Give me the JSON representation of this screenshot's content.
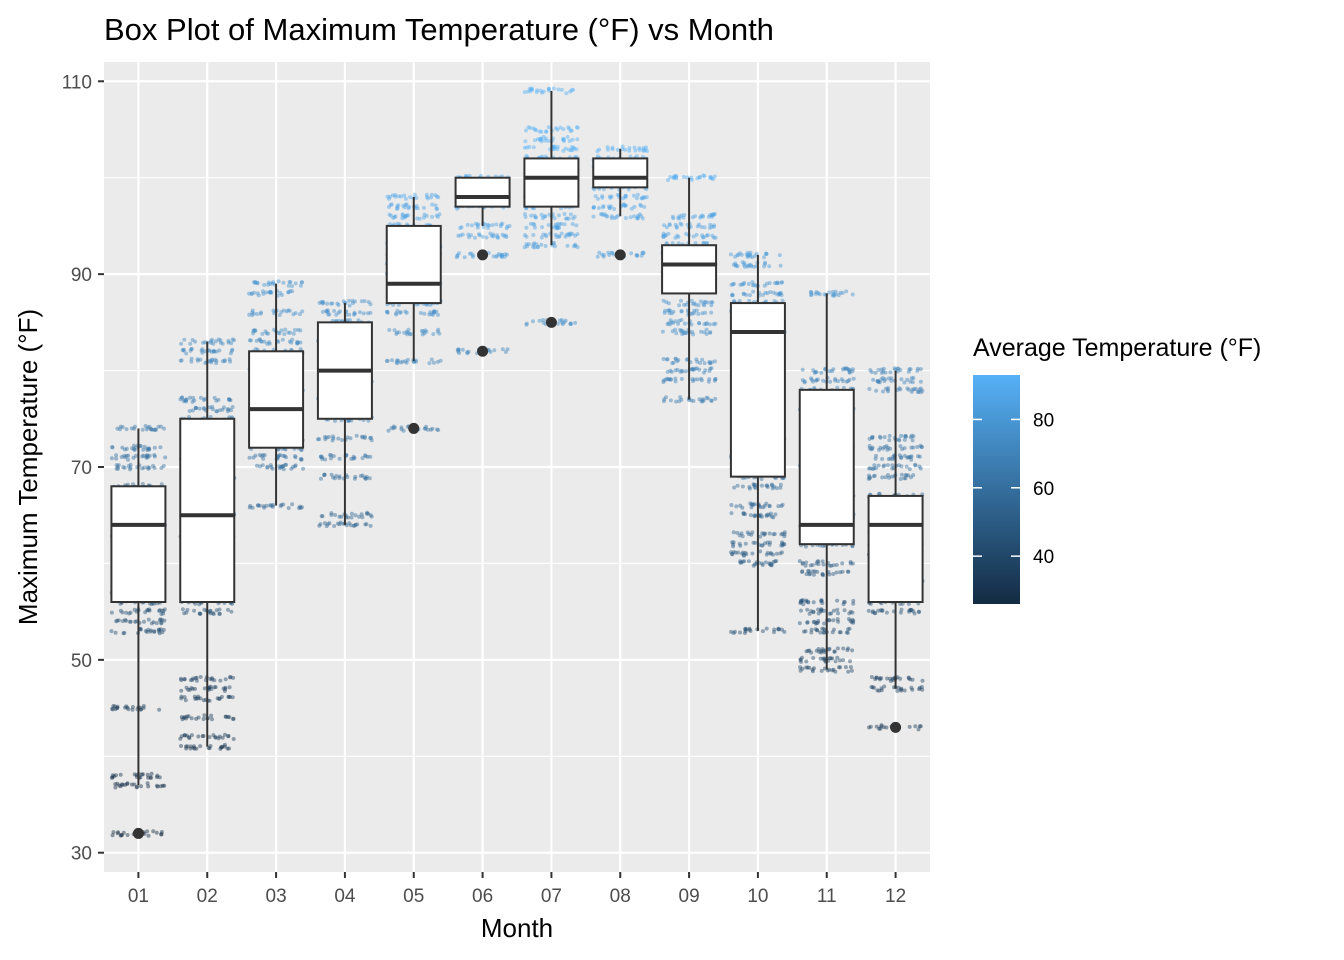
{
  "chart_data": {
    "type": "box",
    "title": "Box Plot of Maximum Temperature (°F) vs Month",
    "xlabel": "Month",
    "ylabel": "Maximum Temperature (°F)",
    "categories": [
      "01",
      "02",
      "03",
      "04",
      "05",
      "06",
      "07",
      "08",
      "09",
      "10",
      "11",
      "12"
    ],
    "ylim": [
      28,
      112
    ],
    "yticks": [
      30,
      50,
      70,
      90,
      110
    ],
    "grid": true,
    "legend": {
      "title": "Average Temperature (°F)",
      "position": "right",
      "range": [
        26,
        93
      ],
      "ticks": [
        40,
        60,
        80
      ],
      "low_color": "#132b43",
      "high_color": "#56b1f7"
    },
    "boxes": [
      {
        "month": "01",
        "whisker_low": 37,
        "q1": 56,
        "median": 64,
        "q3": 68,
        "whisker_high": 74,
        "outliers": [
          32
        ]
      },
      {
        "month": "02",
        "whisker_low": 41,
        "q1": 56,
        "median": 65,
        "q3": 75,
        "whisker_high": 83,
        "outliers": []
      },
      {
        "month": "03",
        "whisker_low": 66,
        "q1": 72,
        "median": 76,
        "q3": 82,
        "whisker_high": 89,
        "outliers": []
      },
      {
        "month": "04",
        "whisker_low": 64,
        "q1": 75,
        "median": 80,
        "q3": 85,
        "whisker_high": 87,
        "outliers": []
      },
      {
        "month": "05",
        "whisker_low": 81,
        "q1": 87,
        "median": 89,
        "q3": 95,
        "whisker_high": 98,
        "outliers": [
          74
        ]
      },
      {
        "month": "06",
        "whisker_low": 95,
        "q1": 97,
        "median": 98,
        "q3": 100,
        "whisker_high": 100,
        "outliers": [
          92,
          82
        ]
      },
      {
        "month": "07",
        "whisker_low": 93,
        "q1": 97,
        "median": 100,
        "q3": 102,
        "whisker_high": 109,
        "outliers": [
          85
        ]
      },
      {
        "month": "08",
        "whisker_low": 96,
        "q1": 99,
        "median": 100,
        "q3": 102,
        "whisker_high": 103,
        "outliers": [
          92
        ]
      },
      {
        "month": "09",
        "whisker_low": 77,
        "q1": 88,
        "median": 91,
        "q3": 93,
        "whisker_high": 100,
        "outliers": []
      },
      {
        "month": "10",
        "whisker_low": 53,
        "q1": 69,
        "median": 84,
        "q3": 87,
        "whisker_high": 92,
        "outliers": []
      },
      {
        "month": "11",
        "whisker_low": 49,
        "q1": 62,
        "median": 64,
        "q3": 78,
        "whisker_high": 88,
        "outliers": []
      },
      {
        "month": "12",
        "whisker_low": 47,
        "q1": 56,
        "median": 64,
        "q3": 67,
        "whisker_high": 80,
        "outliers": [
          43
        ]
      }
    ],
    "jitter_bands": [
      [
        74,
        72,
        71,
        70,
        68,
        67,
        65,
        64,
        63,
        61,
        59,
        57,
        56,
        55,
        54,
        53,
        45,
        38,
        37,
        32
      ],
      [
        83,
        82,
        81,
        77,
        76,
        75,
        73,
        72,
        71,
        70,
        69,
        66,
        65,
        63,
        62,
        61,
        59,
        58,
        56,
        55,
        48,
        47,
        46,
        44,
        42,
        41
      ],
      [
        89,
        88,
        86,
        84,
        83,
        82,
        81,
        80,
        79,
        78,
        77,
        76,
        75,
        74,
        73,
        72,
        71,
        70,
        66
      ],
      [
        87,
        86,
        85,
        84,
        83,
        82,
        81,
        80,
        79,
        78,
        77,
        76,
        75,
        73,
        71,
        69,
        65,
        64
      ],
      [
        98,
        97,
        96,
        95,
        94,
        93,
        92,
        91,
        90,
        89,
        88,
        87,
        86,
        84,
        81,
        74
      ],
      [
        100,
        99,
        98,
        97,
        95,
        94,
        92,
        82
      ],
      [
        109,
        105,
        104,
        103,
        102,
        101,
        100,
        99,
        98,
        97,
        96,
        95,
        94,
        93,
        85
      ],
      [
        103,
        102,
        101,
        100,
        99,
        98,
        97,
        96,
        92
      ],
      [
        100,
        96,
        95,
        94,
        93,
        92,
        91,
        90,
        89,
        87,
        86,
        85,
        84,
        81,
        80,
        79,
        77
      ],
      [
        92,
        91,
        89,
        88,
        87,
        86,
        85,
        84,
        82,
        81,
        79,
        78,
        77,
        75,
        73,
        72,
        71,
        69,
        68,
        66,
        65,
        63,
        62,
        61,
        60,
        53
      ],
      [
        88,
        80,
        79,
        78,
        77,
        76,
        75,
        73,
        72,
        70,
        69,
        67,
        66,
        65,
        64,
        63,
        62,
        60,
        59,
        56,
        55,
        54,
        53,
        51,
        50,
        49
      ],
      [
        80,
        79,
        78,
        73,
        72,
        71,
        70,
        69,
        67,
        66,
        65,
        64,
        63,
        62,
        61,
        60,
        58,
        57,
        56,
        55,
        48,
        47,
        43
      ]
    ]
  }
}
